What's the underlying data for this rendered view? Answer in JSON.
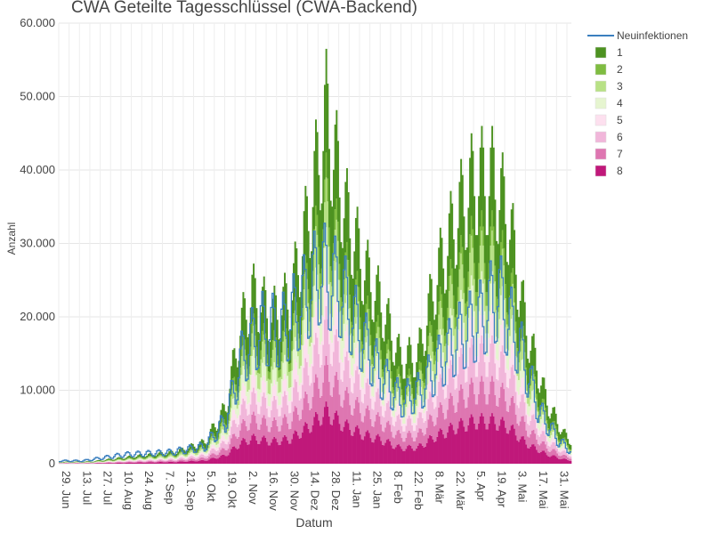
{
  "chart_data": {
    "type": "bar",
    "stacked": true,
    "title": "CWA Geteilte Tagesschlüssel (CWA-Backend)",
    "xlabel": "Datum",
    "ylabel": "Anzahl",
    "ylim": [
      0,
      60000
    ],
    "yticks": [
      0,
      10000,
      20000,
      30000,
      40000,
      50000,
      60000
    ],
    "ytick_labels": [
      "0",
      "10.000",
      "20.000",
      "30.000",
      "40.000",
      "50.000",
      "60.000"
    ],
    "x_start": "2020-06-29",
    "x_end": "2021-06-10",
    "xtick_labels": [
      "29. Jun",
      "13. Jul",
      "27. Jul",
      "10. Aug",
      "24. Aug",
      "7. Sep",
      "21. Sep",
      "5. Okt",
      "19. Okt",
      "2. Nov",
      "16. Nov",
      "30. Nov",
      "14. Dez",
      "28. Dez",
      "11. Jan",
      "25. Jan",
      "8. Feb",
      "22. Feb",
      "8. Mär",
      "22. Mär",
      "5. Apr",
      "19. Apr",
      "3. Mai",
      "17. Mai",
      "31. Mai"
    ],
    "grid": true,
    "legend_position": "top-right",
    "line_series": {
      "name": "Neuinfektionen",
      "color": "#3b7fbf",
      "peaks": [
        {
          "date": "2020-06-29",
          "value": 500
        },
        {
          "date": "2020-07-15",
          "value": 500
        },
        {
          "date": "2020-08-12",
          "value": 1600
        },
        {
          "date": "2020-09-12",
          "value": 2000
        },
        {
          "date": "2020-10-05",
          "value": 3000
        },
        {
          "date": "2020-10-19",
          "value": 7500
        },
        {
          "date": "2020-10-31",
          "value": 19000
        },
        {
          "date": "2020-11-12",
          "value": 23500
        },
        {
          "date": "2020-11-26",
          "value": 23000
        },
        {
          "date": "2020-12-10",
          "value": 28000
        },
        {
          "date": "2020-12-22",
          "value": 33500
        },
        {
          "date": "2021-01-05",
          "value": 30000
        },
        {
          "date": "2021-01-19",
          "value": 22000
        },
        {
          "date": "2021-01-31",
          "value": 16000
        },
        {
          "date": "2021-02-14",
          "value": 11000
        },
        {
          "date": "2021-02-27",
          "value": 12500
        },
        {
          "date": "2021-03-12",
          "value": 17500
        },
        {
          "date": "2021-03-26",
          "value": 22000
        },
        {
          "date": "2021-04-09",
          "value": 25000
        },
        {
          "date": "2021-04-21",
          "value": 29500
        },
        {
          "date": "2021-05-05",
          "value": 21000
        },
        {
          "date": "2021-05-19",
          "value": 9000
        },
        {
          "date": "2021-06-01",
          "value": 4000
        },
        {
          "date": "2021-06-10",
          "value": 2000
        }
      ]
    },
    "bar_envelope": [
      {
        "date": "2020-06-29",
        "value": 300
      },
      {
        "date": "2020-07-20",
        "value": 350
      },
      {
        "date": "2020-08-15",
        "value": 1100
      },
      {
        "date": "2020-09-15",
        "value": 1900
      },
      {
        "date": "2020-10-05",
        "value": 3500
      },
      {
        "date": "2020-10-19",
        "value": 9000
      },
      {
        "date": "2020-10-29",
        "value": 22000
      },
      {
        "date": "2020-11-06",
        "value": 27500
      },
      {
        "date": "2020-11-20",
        "value": 24000
      },
      {
        "date": "2020-12-02",
        "value": 27000
      },
      {
        "date": "2020-12-14",
        "value": 40000
      },
      {
        "date": "2020-12-26",
        "value": 56500
      },
      {
        "date": "2021-01-08",
        "value": 41000
      },
      {
        "date": "2021-01-20",
        "value": 32000
      },
      {
        "date": "2021-02-01",
        "value": 26000
      },
      {
        "date": "2021-02-14",
        "value": 17000
      },
      {
        "date": "2021-02-26",
        "value": 17500
      },
      {
        "date": "2021-03-10",
        "value": 30000
      },
      {
        "date": "2021-03-24",
        "value": 40000
      },
      {
        "date": "2021-04-05",
        "value": 46000
      },
      {
        "date": "2021-04-18",
        "value": 46000
      },
      {
        "date": "2021-04-28",
        "value": 40000
      },
      {
        "date": "2021-05-10",
        "value": 22000
      },
      {
        "date": "2021-05-24",
        "value": 10000
      },
      {
        "date": "2021-06-04",
        "value": 5000
      },
      {
        "date": "2021-06-10",
        "value": 3500
      }
    ],
    "stack_shares": [
      {
        "name": "8",
        "share": 0.15,
        "color": "#c0187a"
      },
      {
        "name": "7",
        "share": 0.11,
        "color": "#de76b1"
      },
      {
        "name": "6",
        "share": 0.12,
        "color": "#f1b6da"
      },
      {
        "name": "5",
        "share": 0.09,
        "color": "#fde0ef"
      },
      {
        "name": "4",
        "share": 0.1,
        "color": "#e6f5d0"
      },
      {
        "name": "3",
        "share": 0.12,
        "color": "#b8e186"
      },
      {
        "name": "2",
        "share": 0.06,
        "color": "#7fbc41"
      },
      {
        "name": "1",
        "share": 0.25,
        "color": "#4d9221"
      }
    ],
    "legend": [
      {
        "label": "Neuinfektionen",
        "kind": "line",
        "color": "#3b7fbf"
      },
      {
        "label": "1",
        "kind": "box",
        "color": "#4d9221"
      },
      {
        "label": "2",
        "kind": "box",
        "color": "#7fbc41"
      },
      {
        "label": "3",
        "kind": "box",
        "color": "#b8e186"
      },
      {
        "label": "4",
        "kind": "box",
        "color": "#e6f5d0"
      },
      {
        "label": "5",
        "kind": "box",
        "color": "#fde0ef"
      },
      {
        "label": "6",
        "kind": "box",
        "color": "#f1b6da"
      },
      {
        "label": "7",
        "kind": "box",
        "color": "#de76b1"
      },
      {
        "label": "8",
        "kind": "box",
        "color": "#c0187a"
      }
    ]
  }
}
